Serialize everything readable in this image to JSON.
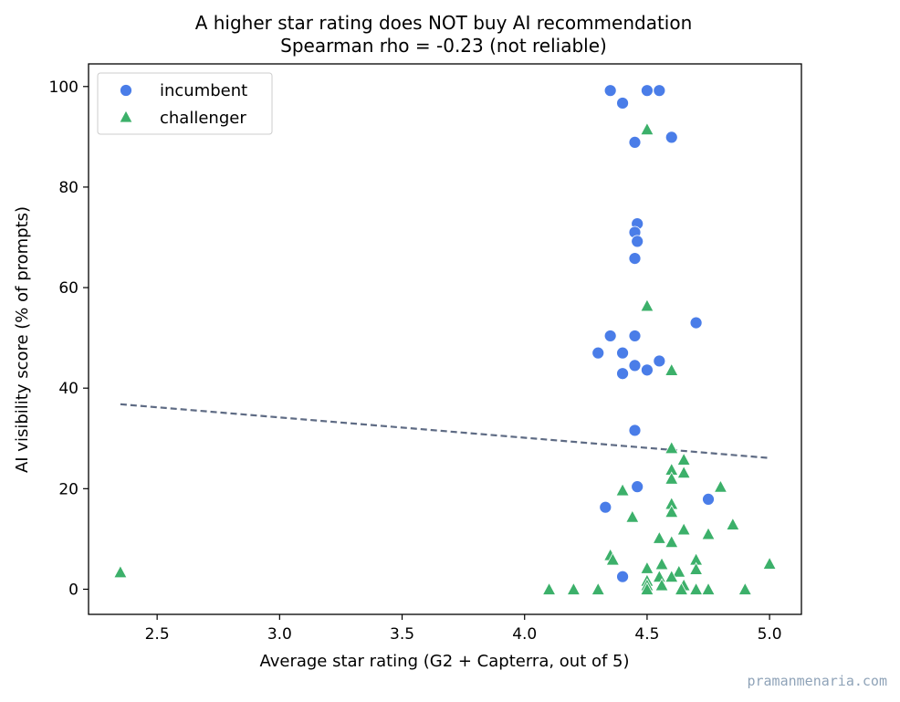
{
  "chart_data": {
    "type": "scatter",
    "title": "A higher star rating does NOT buy AI recommendation",
    "subtitle": "Spearman rho = -0.23  (not reliable)",
    "xlabel": "Average star rating (G2 + Capterra, out of 5)",
    "ylabel": "AI visibility score (% of prompts)",
    "xlim": [
      2.22,
      5.13
    ],
    "ylim": [
      -5,
      104.5
    ],
    "xticks": [
      "2.5",
      "3.0",
      "3.5",
      "4.0",
      "4.5",
      "5.0"
    ],
    "yticks": [
      "0",
      "20",
      "40",
      "60",
      "80",
      "100"
    ],
    "legend_position": "top-left",
    "grid": false,
    "series": [
      {
        "name": "incumbent",
        "marker": "circle",
        "color": "#4a7de8",
        "points": [
          [
            4.35,
            99.2
          ],
          [
            4.5,
            99.2
          ],
          [
            4.55,
            99.2
          ],
          [
            4.4,
            96.7
          ],
          [
            4.45,
            88.9
          ],
          [
            4.6,
            89.9
          ],
          [
            4.46,
            72.7
          ],
          [
            4.45,
            71.0
          ],
          [
            4.46,
            69.2
          ],
          [
            4.45,
            65.8
          ],
          [
            4.7,
            53.0
          ],
          [
            4.35,
            50.4
          ],
          [
            4.45,
            50.4
          ],
          [
            4.3,
            47.0
          ],
          [
            4.4,
            47.0
          ],
          [
            4.55,
            45.4
          ],
          [
            4.45,
            44.5
          ],
          [
            4.5,
            43.6
          ],
          [
            4.4,
            42.9
          ],
          [
            4.45,
            31.6
          ],
          [
            4.46,
            20.4
          ],
          [
            4.33,
            16.3
          ],
          [
            4.75,
            17.9
          ],
          [
            4.4,
            2.5
          ]
        ]
      },
      {
        "name": "challenger",
        "marker": "triangle",
        "color": "#3cb06a",
        "points": [
          [
            4.5,
            91.5
          ],
          [
            4.5,
            56.4
          ],
          [
            4.6,
            43.6
          ],
          [
            4.6,
            28.1
          ],
          [
            4.65,
            25.8
          ],
          [
            4.6,
            23.8
          ],
          [
            4.65,
            23.2
          ],
          [
            4.6,
            22.0
          ],
          [
            4.8,
            20.4
          ],
          [
            4.4,
            19.7
          ],
          [
            4.6,
            17.0
          ],
          [
            4.6,
            15.4
          ],
          [
            4.44,
            14.4
          ],
          [
            4.85,
            12.9
          ],
          [
            4.65,
            11.9
          ],
          [
            4.75,
            11.0
          ],
          [
            4.55,
            10.2
          ],
          [
            4.6,
            9.4
          ],
          [
            4.35,
            6.8
          ],
          [
            4.36,
            5.9
          ],
          [
            4.7,
            5.9
          ],
          [
            5.0,
            5.1
          ],
          [
            4.56,
            5.0
          ],
          [
            4.5,
            4.2
          ],
          [
            4.7,
            4.0
          ],
          [
            4.63,
            3.5
          ],
          [
            2.35,
            3.4
          ],
          [
            4.55,
            2.5
          ],
          [
            4.6,
            2.5
          ],
          [
            4.5,
            1.7
          ],
          [
            4.56,
            0.8
          ],
          [
            4.5,
            0.8
          ],
          [
            4.65,
            0.8
          ],
          [
            4.5,
            0.0
          ],
          [
            4.1,
            0.0
          ],
          [
            4.2,
            0.0
          ],
          [
            4.3,
            0.0
          ],
          [
            4.64,
            0.0
          ],
          [
            4.7,
            0.0
          ],
          [
            4.7,
            0.0
          ],
          [
            4.75,
            0.0
          ],
          [
            4.9,
            0.0
          ]
        ]
      }
    ],
    "trendline": {
      "style": "dashed",
      "color": "#5e6b84",
      "x": [
        2.35,
        5.0
      ],
      "y": [
        36.8,
        26.1
      ]
    }
  },
  "watermark": "pramanmenaria.com"
}
